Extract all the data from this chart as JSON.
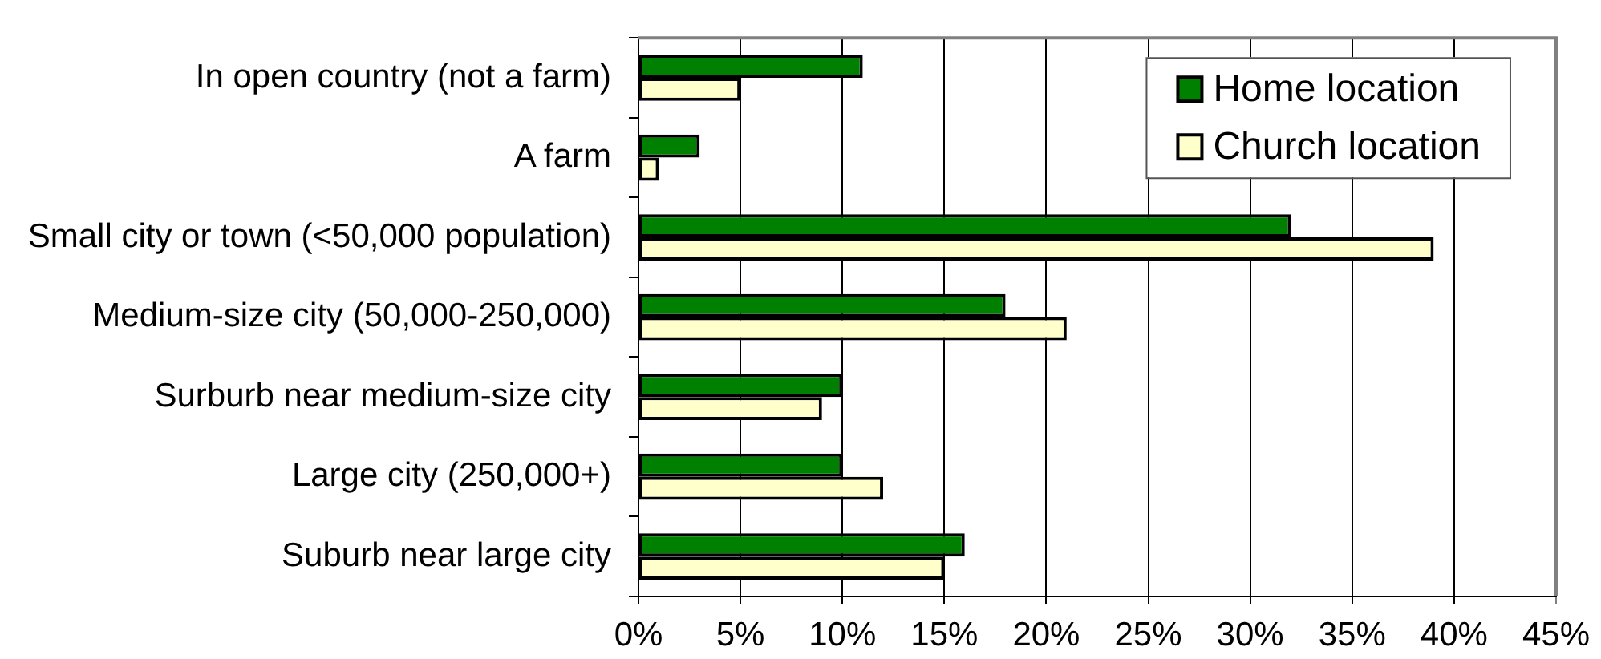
{
  "chart_data": {
    "type": "bar",
    "orientation": "horizontal",
    "categories": [
      "In open country (not a farm)",
      "A farm",
      "Small city or town (<50,000 population)",
      "Medium-size city (50,000-250,000)",
      "Surburb near medium-size city",
      "Large city (250,000+)",
      "Suburb near large city"
    ],
    "series": [
      {
        "name": "Home location",
        "color": "#008000",
        "values": [
          11,
          3,
          32,
          18,
          10,
          10,
          16
        ]
      },
      {
        "name": "Church location",
        "color": "#ffffcc",
        "values": [
          5,
          1,
          39,
          21,
          9,
          12,
          15
        ]
      }
    ],
    "xlim": [
      0,
      45
    ],
    "xticks": [
      {
        "value": 0,
        "label": "0%"
      },
      {
        "value": 5,
        "label": "5%"
      },
      {
        "value": 10,
        "label": "10%"
      },
      {
        "value": 15,
        "label": "15%"
      },
      {
        "value": 20,
        "label": "20%"
      },
      {
        "value": 25,
        "label": "25%"
      },
      {
        "value": 30,
        "label": "30%"
      },
      {
        "value": 35,
        "label": "35%"
      },
      {
        "value": 40,
        "label": "40%"
      },
      {
        "value": 45,
        "label": "45%"
      }
    ],
    "grid": "x",
    "legend": "top right"
  }
}
